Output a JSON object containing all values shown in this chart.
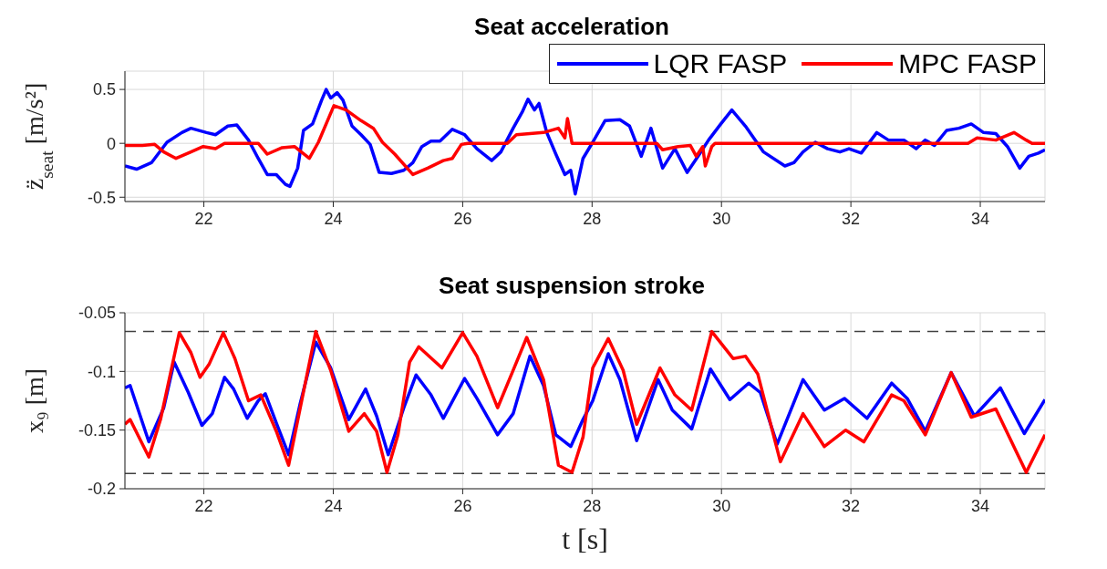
{
  "chart_data": [
    {
      "type": "line",
      "title": "Seat acceleration",
      "ylabel": "z̈$_{seat}$ [m/s²]",
      "xlim": [
        20.78,
        35
      ],
      "xticks": [
        22,
        24,
        26,
        28,
        30,
        32,
        34
      ],
      "ylim": [
        -0.54,
        0.67
      ],
      "yticks": [
        -0.5,
        0,
        0.5
      ],
      "grid": true,
      "legend": "top right",
      "series": [
        {
          "name": "LQR FASP",
          "color": "#0000ff",
          "x": [
            20.78,
            20.96,
            21.19,
            21.43,
            21.66,
            21.8,
            22.04,
            22.18,
            22.37,
            22.51,
            22.69,
            22.84,
            22.98,
            23.12,
            23.26,
            23.33,
            23.45,
            23.54,
            23.68,
            23.82,
            23.89,
            23.96,
            24.06,
            24.15,
            24.29,
            24.43,
            24.57,
            24.71,
            24.9,
            25.09,
            25.23,
            25.37,
            25.51,
            25.65,
            25.84,
            26.03,
            26.22,
            26.45,
            26.59,
            26.78,
            26.92,
            27.01,
            27.11,
            27.18,
            27.3,
            27.44,
            27.58,
            27.67,
            27.74,
            27.86,
            28.01,
            28.2,
            28.43,
            28.58,
            28.76,
            28.91,
            29.09,
            29.28,
            29.47,
            29.66,
            29.8,
            29.99,
            30.16,
            30.37,
            30.65,
            30.98,
            31.12,
            31.26,
            31.45,
            31.64,
            31.83,
            31.97,
            32.16,
            32.4,
            32.58,
            32.82,
            33.01,
            33.15,
            33.29,
            33.48,
            33.67,
            33.86,
            34.05,
            34.24,
            34.42,
            34.61,
            34.75,
            34.9,
            35.0
          ],
          "values": [
            -0.21,
            -0.24,
            -0.18,
            0.01,
            0.1,
            0.14,
            0.1,
            0.08,
            0.16,
            0.17,
            0.03,
            -0.14,
            -0.29,
            -0.29,
            -0.38,
            -0.4,
            -0.23,
            0.12,
            0.18,
            0.4,
            0.5,
            0.42,
            0.47,
            0.4,
            0.16,
            0.08,
            -0.01,
            -0.27,
            -0.28,
            -0.25,
            -0.18,
            -0.03,
            0.02,
            0.02,
            0.13,
            0.08,
            -0.05,
            -0.16,
            -0.08,
            0.14,
            0.29,
            0.41,
            0.31,
            0.37,
            0.1,
            -0.1,
            -0.29,
            -0.25,
            -0.47,
            -0.14,
            0.01,
            0.21,
            0.22,
            0.16,
            -0.12,
            0.14,
            -0.23,
            -0.05,
            -0.27,
            -0.1,
            0.03,
            0.18,
            0.31,
            0.16,
            -0.08,
            -0.21,
            -0.18,
            -0.08,
            0.01,
            -0.05,
            -0.08,
            -0.05,
            -0.09,
            0.1,
            0.03,
            0.03,
            -0.05,
            0.03,
            -0.02,
            0.12,
            0.14,
            0.18,
            0.1,
            0.09,
            -0.03,
            -0.23,
            -0.12,
            -0.09,
            -0.06
          ]
        },
        {
          "name": "MPC FASP",
          "color": "#ff0000",
          "x": [
            20.78,
            21.05,
            21.24,
            21.38,
            21.57,
            21.8,
            21.99,
            22.18,
            22.32,
            22.84,
            22.98,
            23.21,
            23.4,
            23.63,
            23.77,
            24.01,
            24.2,
            24.43,
            24.62,
            24.76,
            24.95,
            25.23,
            25.46,
            25.7,
            25.84,
            25.98,
            26.08,
            26.69,
            26.83,
            27.25,
            27.48,
            27.58,
            27.62,
            27.69,
            29.0,
            29.09,
            29.33,
            29.52,
            29.61,
            29.71,
            29.75,
            29.85,
            29.9,
            33.81,
            33.95,
            34.24,
            34.52,
            34.71,
            34.8,
            35.0
          ],
          "values": [
            -0.02,
            -0.02,
            -0.01,
            -0.08,
            -0.14,
            -0.08,
            -0.03,
            -0.05,
            0,
            0,
            -0.1,
            -0.04,
            -0.03,
            -0.14,
            0.01,
            0.35,
            0.31,
            0.21,
            0.14,
            0.01,
            -0.1,
            -0.29,
            -0.23,
            -0.16,
            -0.14,
            -0.01,
            0,
            0,
            0.08,
            0.1,
            0.14,
            0.05,
            0.23,
            0,
            0,
            -0.06,
            -0.03,
            -0.02,
            -0.12,
            -0.03,
            -0.21,
            -0.03,
            0,
            0,
            0.05,
            0.03,
            0.1,
            0.03,
            0,
            0
          ]
        }
      ]
    },
    {
      "type": "line",
      "title": "Seat suspension stroke",
      "xlabel": "t [s]",
      "ylabel": "x₉ [m]",
      "xlim": [
        20.78,
        35
      ],
      "xticks": [
        22,
        24,
        26,
        28,
        30,
        32,
        34
      ],
      "ylim": [
        -0.2,
        -0.05
      ],
      "yticks": [
        -0.2,
        -0.15,
        -0.1,
        -0.05
      ],
      "grid": true,
      "ref_lines": [
        {
          "axis": "y",
          "value": -0.066,
          "color": "#404040",
          "line_style": "dashed"
        },
        {
          "axis": "y",
          "value": -0.187,
          "color": "#404040",
          "line_style": "dashed"
        }
      ],
      "series": [
        {
          "color": "#0000ff",
          "x": [
            20.78,
            20.86,
            21.15,
            21.38,
            21.54,
            21.76,
            21.97,
            22.13,
            22.32,
            22.46,
            22.67,
            22.84,
            22.95,
            23.12,
            23.31,
            23.49,
            23.73,
            23.96,
            24.24,
            24.5,
            24.67,
            24.85,
            25.09,
            25.28,
            25.51,
            25.7,
            26.03,
            26.22,
            26.54,
            26.78,
            27.04,
            27.25,
            27.44,
            27.67,
            27.86,
            28.01,
            28.25,
            28.43,
            28.69,
            29.02,
            29.24,
            29.54,
            29.83,
            30.13,
            30.42,
            30.6,
            30.86,
            31.26,
            31.59,
            31.9,
            32.25,
            32.63,
            32.87,
            33.15,
            33.55,
            33.91,
            34.31,
            34.68,
            35.0
          ],
          "values": [
            -0.114,
            -0.112,
            -0.16,
            -0.131,
            -0.092,
            -0.118,
            -0.146,
            -0.136,
            -0.105,
            -0.115,
            -0.14,
            -0.125,
            -0.119,
            -0.144,
            -0.171,
            -0.127,
            -0.075,
            -0.097,
            -0.141,
            -0.115,
            -0.138,
            -0.171,
            -0.131,
            -0.103,
            -0.12,
            -0.14,
            -0.106,
            -0.123,
            -0.154,
            -0.136,
            -0.087,
            -0.112,
            -0.154,
            -0.164,
            -0.141,
            -0.125,
            -0.085,
            -0.107,
            -0.159,
            -0.107,
            -0.133,
            -0.149,
            -0.098,
            -0.124,
            -0.11,
            -0.118,
            -0.162,
            -0.107,
            -0.133,
            -0.123,
            -0.14,
            -0.11,
            -0.123,
            -0.151,
            -0.101,
            -0.138,
            -0.114,
            -0.153,
            -0.124
          ]
        },
        {
          "color": "#ff0000",
          "x": [
            20.78,
            20.86,
            21.15,
            21.33,
            21.62,
            21.8,
            21.94,
            22.08,
            22.3,
            22.48,
            22.69,
            22.88,
            23.12,
            23.31,
            23.49,
            23.73,
            23.96,
            24.24,
            24.48,
            24.67,
            24.83,
            25.0,
            25.18,
            25.32,
            25.68,
            26.0,
            26.22,
            26.54,
            26.78,
            26.99,
            27.25,
            27.48,
            27.69,
            27.86,
            28.01,
            28.25,
            28.48,
            28.69,
            29.05,
            29.28,
            29.54,
            29.85,
            30.18,
            30.37,
            30.56,
            30.91,
            31.26,
            31.59,
            31.92,
            32.2,
            32.63,
            32.82,
            33.15,
            33.55,
            33.86,
            34.24,
            34.71,
            35.0
          ],
          "values": [
            -0.145,
            -0.141,
            -0.173,
            -0.141,
            -0.067,
            -0.084,
            -0.105,
            -0.094,
            -0.067,
            -0.089,
            -0.125,
            -0.12,
            -0.151,
            -0.18,
            -0.131,
            -0.066,
            -0.099,
            -0.151,
            -0.136,
            -0.151,
            -0.186,
            -0.154,
            -0.092,
            -0.079,
            -0.097,
            -0.067,
            -0.087,
            -0.131,
            -0.099,
            -0.071,
            -0.107,
            -0.18,
            -0.186,
            -0.156,
            -0.097,
            -0.072,
            -0.099,
            -0.145,
            -0.097,
            -0.12,
            -0.133,
            -0.066,
            -0.089,
            -0.087,
            -0.102,
            -0.177,
            -0.136,
            -0.164,
            -0.15,
            -0.16,
            -0.12,
            -0.125,
            -0.154,
            -0.101,
            -0.139,
            -0.132,
            -0.186,
            -0.154
          ]
        }
      ]
    }
  ]
}
